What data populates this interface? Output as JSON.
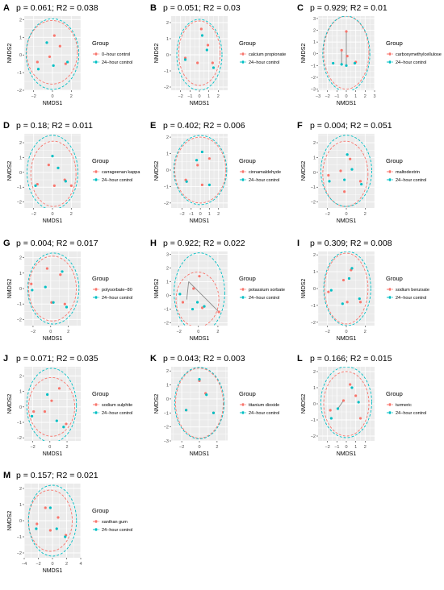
{
  "figure": {
    "legend_title": "Group",
    "control_label": "24−hour control",
    "colors": {
      "treatment": "#f8766d",
      "control": "#00bfc4",
      "panel_bg": "#ebebeb",
      "grid": "#ffffff"
    }
  },
  "chart_data": [
    {
      "panel": "A",
      "type": "scatter",
      "title": "p = 0.061; R2 = 0.038",
      "xlabel": "NMDS1",
      "ylabel": "NMDS2",
      "xlim": [
        -3,
        3
      ],
      "ylim": [
        -2,
        2.2
      ],
      "xticks": [
        -2,
        0,
        2
      ],
      "yticks": [
        -2,
        -1,
        0,
        1,
        2
      ],
      "series": [
        {
          "name": "0−hour control",
          "group": "treatment",
          "x": [
            -1.6,
            -0.3,
            0.2,
            0.8,
            1.4
          ],
          "y": [
            -0.4,
            -0.1,
            1.1,
            0.5,
            -0.5
          ]
        },
        {
          "name": "24−hour control",
          "group": "control",
          "x": [
            -1.5,
            -0.6,
            0.1,
            1.6
          ],
          "y": [
            -0.8,
            0.7,
            -0.6,
            -0.4
          ]
        }
      ],
      "ellipses": {
        "treatment": {
          "cx": -0.05,
          "cy": 0.15,
          "rx": 2.7,
          "ry": 1.8
        },
        "control": {
          "cx": 0.0,
          "cy": 0.05,
          "rx": 2.8,
          "ry": 2.0
        }
      },
      "segments": []
    },
    {
      "panel": "B",
      "type": "scatter",
      "title": "p = 0.051; R2 = 0.03",
      "xlabel": "NMDS1",
      "ylabel": "NMDS2",
      "xlim": [
        -3,
        3
      ],
      "ylim": [
        -2.2,
        2.4
      ],
      "xticks": [
        -2,
        -1,
        0,
        1,
        2
      ],
      "yticks": [
        -2,
        -1,
        0,
        1,
        2
      ],
      "series": [
        {
          "name": "calcium propionate",
          "group": "treatment",
          "x": [
            -1.5,
            -0.2,
            0.2,
            0.9,
            1.4
          ],
          "y": [
            -0.2,
            -0.5,
            1.6,
            0.6,
            -0.5
          ]
        },
        {
          "name": "24−hour control",
          "group": "control",
          "x": [
            -1.5,
            0.3,
            0.8,
            1.5
          ],
          "y": [
            -0.3,
            1.2,
            0.3,
            -0.8
          ]
        }
      ],
      "ellipses": {
        "treatment": {
          "cx": 0.0,
          "cy": 0.1,
          "rx": 2.2,
          "ry": 2.0
        },
        "control": {
          "cx": 0.0,
          "cy": 0.0,
          "rx": 2.4,
          "ry": 2.2
        }
      },
      "segments": []
    },
    {
      "panel": "C",
      "type": "scatter",
      "title": "p = 0.929; R2 = 0.01",
      "xlabel": "NMDS1",
      "ylabel": "NMDS2",
      "xlim": [
        -3,
        3
      ],
      "ylim": [
        -3.1,
        3.2
      ],
      "xticks": [
        -3,
        -2,
        -1,
        0,
        1,
        2,
        3
      ],
      "yticks": [
        -3,
        -2,
        -1,
        0,
        1,
        2,
        3
      ],
      "series": [
        {
          "name": "carboxymethylcellulose",
          "group": "treatment",
          "x": [
            -0.5,
            0.0,
            0.1,
            1.0
          ],
          "y": [
            0.3,
            1.9,
            -0.2,
            -0.7
          ]
        },
        {
          "name": "24−hour control",
          "group": "control",
          "x": [
            -1.4,
            -0.5,
            0.0,
            0.9
          ],
          "y": [
            -0.8,
            -0.9,
            -1.0,
            -0.8
          ]
        }
      ],
      "ellipses": {
        "treatment": {
          "cx": 0.0,
          "cy": 0.1,
          "rx": 2.4,
          "ry": 3.1
        },
        "control": {
          "cx": 0.0,
          "cy": 0.0,
          "rx": 2.5,
          "ry": 3.2
        }
      },
      "segments": [
        {
          "x1": -0.5,
          "y1": 0.3,
          "x2": -0.5,
          "y2": -0.9
        },
        {
          "x1": 0.0,
          "y1": 1.9,
          "x2": 0.0,
          "y2": -1.0
        }
      ]
    },
    {
      "panel": "D",
      "type": "scatter",
      "title": "p = 0.18; R2 = 0.011",
      "xlabel": "NMDS1",
      "ylabel": "NMDS2",
      "xlim": [
        -3,
        3
      ],
      "ylim": [
        -2.4,
        2.6
      ],
      "xticks": [
        -2,
        0,
        2
      ],
      "yticks": [
        -2,
        -1,
        0,
        1,
        2
      ],
      "series": [
        {
          "name": "carrageenan kappa",
          "group": "treatment",
          "x": [
            -1.6,
            -0.4,
            0.2,
            1.3,
            2.0
          ],
          "y": [
            -0.8,
            0.5,
            -0.9,
            -0.5,
            -0.9
          ]
        },
        {
          "name": "24−hour control",
          "group": "control",
          "x": [
            -1.8,
            0.0,
            0.6,
            1.4
          ],
          "y": [
            -0.9,
            1.1,
            0.3,
            -0.6
          ]
        }
      ],
      "ellipses": {
        "treatment": {
          "cx": 0.1,
          "cy": -0.1,
          "rx": 2.4,
          "ry": 2.2
        },
        "control": {
          "cx": 0.0,
          "cy": 0.0,
          "rx": 2.7,
          "ry": 2.5
        }
      },
      "segments": []
    },
    {
      "panel": "E",
      "type": "scatter",
      "title": "p = 0.402; R2 = 0.006",
      "xlabel": "NMDS1",
      "ylabel": "NMDS2",
      "xlim": [
        -3.2,
        3
      ],
      "ylim": [
        -2.3,
        2.2
      ],
      "xticks": [
        -2,
        -1,
        0,
        1,
        2
      ],
      "yticks": [
        -2,
        -1,
        0,
        1,
        2
      ],
      "series": [
        {
          "name": "cinnamaldehyde",
          "group": "treatment",
          "x": [
            -1.6,
            -0.3,
            0.2,
            1.0
          ],
          "y": [
            -0.6,
            0.3,
            -0.9,
            0.7
          ]
        },
        {
          "name": "24−hour control",
          "group": "control",
          "x": [
            -1.5,
            -0.4,
            0.2,
            1.0
          ],
          "y": [
            -0.7,
            0.6,
            1.1,
            -0.9
          ]
        }
      ],
      "ellipses": {
        "treatment": {
          "cx": 0.0,
          "cy": 0.0,
          "rx": 2.8,
          "ry": 2.0
        },
        "control": {
          "cx": 0.0,
          "cy": 0.0,
          "rx": 2.9,
          "ry": 2.1
        }
      },
      "segments": []
    },
    {
      "panel": "F",
      "type": "scatter",
      "title": "p = 0.004; R2 = 0.051",
      "xlabel": "NMDS1",
      "ylabel": "NMDS2",
      "xlim": [
        -3,
        3
      ],
      "ylim": [
        -2.4,
        2.6
      ],
      "xticks": [
        -2,
        0,
        2
      ],
      "yticks": [
        -2,
        -1,
        0,
        1,
        2
      ],
      "series": [
        {
          "name": "maltodextrin",
          "group": "treatment",
          "x": [
            -1.9,
            -0.6,
            -0.2,
            0.4,
            1.5
          ],
          "y": [
            -0.2,
            0.1,
            -1.3,
            0.9,
            -0.6
          ]
        },
        {
          "name": "24−hour control",
          "group": "control",
          "x": [
            -1.8,
            -0.2,
            0.1,
            0.6,
            1.6
          ],
          "y": [
            -0.6,
            -0.5,
            1.2,
            0.2,
            -0.8
          ]
        }
      ],
      "ellipses": {
        "treatment": {
          "cx": -0.1,
          "cy": -0.1,
          "rx": 2.4,
          "ry": 2.2
        },
        "control": {
          "cx": 0.0,
          "cy": 0.1,
          "rx": 2.7,
          "ry": 2.4
        }
      },
      "segments": []
    },
    {
      "panel": "G",
      "type": "scatter",
      "title": "p = 0.004; R2 = 0.017",
      "xlabel": "NMDS1",
      "ylabel": "NMDS2",
      "xlim": [
        -3,
        3.4
      ],
      "ylim": [
        -2.4,
        2.4
      ],
      "xticks": [
        -2,
        0,
        2
      ],
      "yticks": [
        -2,
        -1,
        0,
        1,
        2
      ],
      "series": [
        {
          "name": "polysorbate−80",
          "group": "treatment",
          "x": [
            -2.2,
            -0.4,
            0.1,
            1.1,
            1.6
          ],
          "y": [
            0.3,
            1.3,
            -0.9,
            0.9,
            -1.0
          ]
        },
        {
          "name": "24−hour control",
          "group": "control",
          "x": [
            -2.1,
            -0.6,
            0.3,
            1.3,
            1.8
          ],
          "y": [
            -0.1,
            0.1,
            -0.9,
            1.1,
            -1.2
          ]
        }
      ],
      "ellipses": {
        "treatment": {
          "cx": 0.2,
          "cy": 0.0,
          "rx": 2.7,
          "ry": 2.1
        },
        "control": {
          "cx": 0.3,
          "cy": 0.0,
          "rx": 2.9,
          "ry": 2.3
        }
      },
      "segments": []
    },
    {
      "panel": "H",
      "type": "scatter",
      "title": "p = 0.922; R2 = 0.022",
      "xlabel": "NMDS1",
      "ylabel": "NMDS2",
      "xlim": [
        -2.8,
        3
      ],
      "ylim": [
        -2.2,
        3.2
      ],
      "xticks": [
        -2,
        0,
        2
      ],
      "yticks": [
        -2,
        -1,
        0,
        1,
        2,
        3
      ],
      "series": [
        {
          "name": "potassium sorbate",
          "group": "treatment",
          "x": [
            -1.6,
            -0.5,
            0.1,
            0.4,
            2.1
          ],
          "y": [
            -0.5,
            0.5,
            1.4,
            -0.9,
            -1.2
          ]
        },
        {
          "name": "24−hour control",
          "group": "control",
          "x": [
            -1.9,
            -0.6,
            -0.1,
            0.6
          ],
          "y": [
            0.1,
            -1.0,
            -0.5,
            -0.8
          ]
        }
      ],
      "ellipses": {
        "treatment": {
          "cx": -0.1,
          "cy": -0.3,
          "rx": 2.2,
          "ry": 2.0
        },
        "control": {
          "cx": 0.1,
          "cy": 0.2,
          "rx": 2.6,
          "ry": 2.9
        }
      },
      "segments": [
        {
          "x1": -1.0,
          "y1": 1.0,
          "x2": 2.1,
          "y2": -1.2
        },
        {
          "x1": -1.0,
          "y1": 1.0,
          "x2": -1.2,
          "y2": -0.3
        }
      ]
    },
    {
      "panel": "I",
      "type": "scatter",
      "title": "p = 0.309; R2 = 0.008",
      "xlabel": "NMDS1",
      "ylabel": "NMDS2",
      "xlim": [
        -3,
        3
      ],
      "ylim": [
        -2.2,
        2.2
      ],
      "xticks": [
        -2,
        0,
        2
      ],
      "yticks": [
        -2,
        -1,
        0,
        1,
        2
      ],
      "series": [
        {
          "name": "sodium benzoate",
          "group": "treatment",
          "x": [
            -1.9,
            -0.3,
            0.1,
            0.5,
            1.5
          ],
          "y": [
            -0.2,
            0.5,
            -0.8,
            1.1,
            -0.8
          ]
        },
        {
          "name": "24−hour control",
          "group": "control",
          "x": [
            -1.6,
            -0.4,
            0.3,
            0.6,
            1.4
          ],
          "y": [
            -0.1,
            -0.9,
            0.6,
            1.2,
            -0.6
          ]
        }
      ],
      "ellipses": {
        "treatment": {
          "cx": 0.0,
          "cy": 0.0,
          "rx": 2.3,
          "ry": 2.1
        },
        "control": {
          "cx": 0.1,
          "cy": 0.0,
          "rx": 2.5,
          "ry": 2.2
        }
      },
      "segments": []
    },
    {
      "panel": "J",
      "type": "scatter",
      "title": "p = 0.071; R2 = 0.035",
      "xlabel": "NMDS1",
      "ylabel": "NMDS2",
      "xlim": [
        -3,
        3.6
      ],
      "ylim": [
        -2.2,
        2.6
      ],
      "xticks": [
        -2,
        0,
        2
      ],
      "yticks": [
        -2,
        -1,
        0,
        1,
        2
      ],
      "series": [
        {
          "name": "sodium sulphite",
          "group": "treatment",
          "x": [
            -1.9,
            -0.6,
            0.2,
            1.1,
            1.9
          ],
          "y": [
            -0.3,
            -0.3,
            0.4,
            1.2,
            -1.1
          ]
        },
        {
          "name": "24−hour control",
          "group": "control",
          "x": [
            -2.1,
            -0.3,
            0.8,
            1.6
          ],
          "y": [
            -0.6,
            0.8,
            -0.9,
            -1.3
          ]
        }
      ],
      "ellipses": {
        "treatment": {
          "cx": 0.2,
          "cy": 0.0,
          "rx": 2.7,
          "ry": 1.9
        },
        "control": {
          "cx": 0.2,
          "cy": 0.1,
          "rx": 2.9,
          "ry": 2.4
        }
      },
      "segments": []
    },
    {
      "panel": "K",
      "type": "scatter",
      "title": "p = 0.043; R2 = 0.003",
      "xlabel": "NMDS1",
      "ylabel": "NMDS2",
      "xlim": [
        -3.2,
        3.2
      ],
      "ylim": [
        -3.0,
        2.3
      ],
      "xticks": [
        -2,
        0,
        2
      ],
      "yticks": [
        -3,
        -2,
        -1,
        0,
        1,
        2
      ],
      "series": [
        {
          "name": "titanium dioxide",
          "group": "treatment",
          "x": [
            -1.5,
            0.0,
            0.7,
            1.6
          ],
          "y": [
            -0.8,
            1.3,
            0.4,
            -1.0
          ]
        },
        {
          "name": "24−hour control",
          "group": "control",
          "x": [
            -1.5,
            0.0,
            0.8,
            1.6
          ],
          "y": [
            -0.8,
            1.4,
            0.3,
            -1.0
          ]
        }
      ],
      "ellipses": {
        "treatment": {
          "cx": 0.0,
          "cy": -0.3,
          "rx": 2.7,
          "ry": 2.5
        },
        "control": {
          "cx": 0.0,
          "cy": -0.3,
          "rx": 2.8,
          "ry": 2.55
        }
      },
      "segments": []
    },
    {
      "panel": "L",
      "type": "scatter",
      "title": "p = 0.166; R2 = 0.015",
      "xlabel": "NMDS1",
      "ylabel": "NMDS2",
      "xlim": [
        -3,
        3
      ],
      "ylim": [
        -2.3,
        2.3
      ],
      "xticks": [
        -2,
        -1,
        0,
        1,
        2
      ],
      "yticks": [
        -2,
        -1,
        0,
        1,
        2
      ],
      "series": [
        {
          "name": "turmeric",
          "group": "treatment",
          "x": [
            -1.7,
            -0.3,
            0.4,
            1.0,
            1.5
          ],
          "y": [
            -0.4,
            0.2,
            1.2,
            0.5,
            -0.9
          ]
        },
        {
          "name": "24−hour control",
          "group": "control",
          "x": [
            -1.6,
            -0.9,
            0.6,
            1.3
          ],
          "y": [
            -0.9,
            -0.3,
            1.0,
            0.1
          ]
        }
      ],
      "ellipses": {
        "treatment": {
          "cx": 0.0,
          "cy": 0.0,
          "rx": 2.4,
          "ry": 2.0
        },
        "control": {
          "cx": 0.0,
          "cy": 0.1,
          "rx": 2.7,
          "ry": 2.2
        }
      },
      "segments": [
        {
          "x1": -0.3,
          "y1": 0.2,
          "x2": -0.9,
          "y2": -0.3
        }
      ]
    },
    {
      "panel": "M",
      "type": "scatter",
      "title": "p = 0.157; R2 = 0.021",
      "xlabel": "NMDS1",
      "ylabel": "NMDS2",
      "xlim": [
        -4,
        4
      ],
      "ylim": [
        -2.3,
        2.3
      ],
      "xticks": [
        -4,
        -2,
        0,
        2,
        4
      ],
      "yticks": [
        -2,
        -1,
        0,
        1,
        2
      ],
      "series": [
        {
          "name": "xanthan gum",
          "group": "treatment",
          "x": [
            -2.2,
            -1.0,
            -0.3,
            0.8,
            1.9
          ],
          "y": [
            -0.2,
            0.8,
            -0.6,
            0.2,
            -0.9
          ]
        },
        {
          "name": "24−hour control",
          "group": "control",
          "x": [
            -2.3,
            -0.3,
            0.6,
            1.8
          ],
          "y": [
            -0.5,
            0.8,
            -0.5,
            -1.0
          ]
        }
      ],
      "ellipses": {
        "treatment": {
          "cx": -0.3,
          "cy": 0.0,
          "rx": 3.1,
          "ry": 1.9
        },
        "control": {
          "cx": 0.0,
          "cy": 0.0,
          "rx": 3.4,
          "ry": 2.2
        }
      },
      "segments": []
    }
  ]
}
